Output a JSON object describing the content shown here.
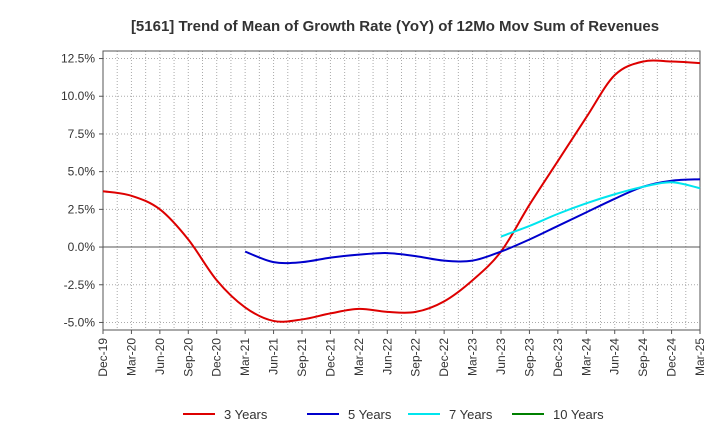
{
  "chart_data": {
    "type": "line",
    "title": "[5161]  Trend of Mean of Growth Rate (YoY) of 12Mo Mov Sum of Revenues",
    "xlabel": "",
    "ylabel": "",
    "ylim": [
      -5.5,
      13.0
    ],
    "y_ticks": [
      12.5,
      10.0,
      7.5,
      5.0,
      2.5,
      0.0,
      -2.5,
      -5.0
    ],
    "y_tick_labels": [
      "12.5%",
      "10.0%",
      "7.5%",
      "5.0%",
      "2.5%",
      "0.0%",
      "-2.5%",
      "-5.0%"
    ],
    "x_tick_labels": [
      "Dec-19",
      "Mar-20",
      "Jun-20",
      "Sep-20",
      "Dec-20",
      "Mar-21",
      "Jun-21",
      "Sep-21",
      "Dec-21",
      "Mar-22",
      "Jun-22",
      "Sep-22",
      "Dec-22",
      "Mar-23",
      "Jun-23",
      "Sep-23",
      "Dec-23",
      "Mar-24",
      "Jun-24",
      "Sep-24",
      "Dec-24",
      "Mar-25"
    ],
    "grid": true,
    "legend_position": "bottom",
    "series": [
      {
        "name": "3 Years",
        "color": "#dd0000",
        "points": [
          [
            0,
            3.7
          ],
          [
            1,
            3.4
          ],
          [
            2,
            2.5
          ],
          [
            3,
            0.5
          ],
          [
            4,
            -2.2
          ],
          [
            5,
            -4.0
          ],
          [
            6,
            -4.9
          ],
          [
            7,
            -4.8
          ],
          [
            8,
            -4.4
          ],
          [
            9,
            -4.1
          ],
          [
            10,
            -4.3
          ],
          [
            11,
            -4.3
          ],
          [
            12,
            -3.6
          ],
          [
            13,
            -2.2
          ],
          [
            14,
            -0.3
          ],
          [
            15,
            2.8
          ],
          [
            16,
            5.7
          ],
          [
            17,
            8.6
          ],
          [
            18,
            11.4
          ],
          [
            19,
            12.3
          ],
          [
            20,
            12.3
          ],
          [
            21,
            12.2
          ]
        ]
      },
      {
        "name": "5 Years",
        "color": "#0000cc",
        "points": [
          [
            5,
            -0.3
          ],
          [
            6,
            -1.0
          ],
          [
            7,
            -1.0
          ],
          [
            8,
            -0.7
          ],
          [
            9,
            -0.5
          ],
          [
            10,
            -0.4
          ],
          [
            11,
            -0.6
          ],
          [
            12,
            -0.9
          ],
          [
            13,
            -0.9
          ],
          [
            14,
            -0.3
          ],
          [
            15,
            0.5
          ],
          [
            16,
            1.4
          ],
          [
            17,
            2.3
          ],
          [
            18,
            3.2
          ],
          [
            19,
            4.0
          ],
          [
            20,
            4.4
          ],
          [
            21,
            4.5
          ]
        ]
      },
      {
        "name": "7 Years",
        "color": "#00e5ee",
        "points": [
          [
            14,
            0.7
          ],
          [
            15,
            1.4
          ],
          [
            16,
            2.2
          ],
          [
            17,
            2.9
          ],
          [
            18,
            3.5
          ],
          [
            19,
            4.0
          ],
          [
            20,
            4.3
          ],
          [
            21,
            3.9
          ]
        ]
      },
      {
        "name": "10 Years",
        "color": "#008000",
        "points": []
      }
    ]
  }
}
